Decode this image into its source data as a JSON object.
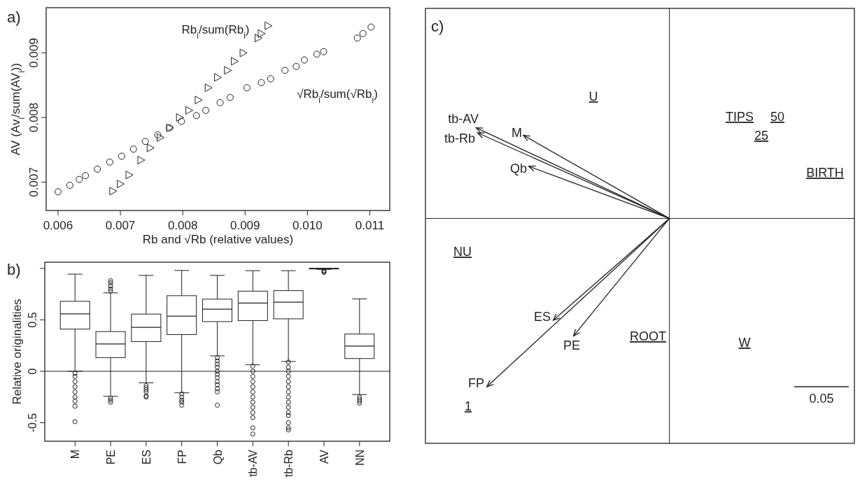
{
  "chart_data": [
    {
      "type": "scatter",
      "title": "a)",
      "xlabel": "Rb and √Rb (relative values)",
      "ylabel": "AV (Av$_{i}$/sum(AV$_{i}$))",
      "xlim": [
        0.00581,
        0.01132
      ],
      "ylim": [
        0.00656,
        0.0097
      ],
      "xticks": [
        0.006,
        0.007,
        0.008,
        0.009,
        {
          "value": 0.01,
          "label": "0.010"
        },
        0.011
      ],
      "yticks": [
        0.007,
        0.008,
        0.009
      ],
      "series": [
        {
          "name": "Rb$_{i}$/sum(Rb$_{i}$)",
          "color": "#231f20",
          "marker": "triangle",
          "x": [
            0.00688,
            0.007,
            0.00714,
            0.00733,
            0.00748,
            0.00764,
            0.00779,
            0.00795,
            0.0081,
            0.00825,
            0.00841,
            0.00856,
            0.00872,
            0.00883,
            0.00897,
            0.00921,
            0.00926,
            0.00937
          ],
          "values": [
            0.00686,
            0.00697,
            0.00711,
            0.00734,
            0.00753,
            0.00769,
            0.00784,
            0.008,
            0.00811,
            0.00827,
            0.00846,
            0.00862,
            0.00873,
            0.00887,
            0.009,
            0.00923,
            0.0093,
            0.00942
          ]
        },
        {
          "name": "√Rb$_{i}$/sum(√Rb$_{i}$)",
          "color": "#231f20",
          "marker": "circle",
          "x": [
            0.006,
            0.00619,
            0.00634,
            0.00644,
            0.00663,
            0.00683,
            0.00702,
            0.00721,
            0.0074,
            0.0076,
            0.00779,
            0.00798,
            0.00822,
            0.00837,
            0.0086,
            0.00876,
            0.00903,
            0.00926,
            0.00941,
            0.00964,
            0.00982,
            0.00995,
            0.01015,
            0.01026,
            0.0108,
            0.01089,
            0.01102
          ],
          "values": [
            0.00685,
            0.00695,
            0.00704,
            0.0071,
            0.0072,
            0.00731,
            0.0074,
            0.00751,
            0.00763,
            0.00773,
            0.00784,
            0.00794,
            0.00803,
            0.00811,
            0.00823,
            0.00831,
            0.00846,
            0.00854,
            0.0086,
            0.00873,
            0.00879,
            0.00889,
            0.00898,
            0.00902,
            0.00923,
            0.0093,
            0.0094
          ]
        }
      ]
    },
    {
      "type": "box",
      "title": "b)",
      "ylabel": "Relative originalities",
      "categories": [
        "M",
        "PE",
        "ES",
        "FP",
        "Qb",
        "tb-AV",
        "tb-Rb",
        "AV",
        "NN"
      ],
      "ylim": [
        -0.68,
        1.06
      ],
      "yticks": [
        -0.5,
        0,
        0.5,
        {
          "value": 1,
          "label": null
        }
      ],
      "ref_lines": [
        {
          "axis": "y",
          "value": 0,
          "label": null
        }
      ],
      "boxes": [
        {
          "low": 0.0,
          "q1": 0.41,
          "median": 0.558,
          "q3": 0.68,
          "high": 0.944,
          "outliers": [
            -0.02,
            -0.05,
            -0.1,
            -0.15,
            -0.2,
            -0.25,
            -0.29,
            -0.34,
            -0.49
          ]
        },
        {
          "low": -0.243,
          "q1": 0.133,
          "median": 0.265,
          "q3": 0.386,
          "high": 0.762,
          "outliers": [
            0.78,
            0.8,
            0.83,
            0.86,
            0.88,
            -0.26,
            -0.28,
            -0.3
          ]
        },
        {
          "low": -0.112,
          "q1": 0.289,
          "median": 0.427,
          "q3": 0.556,
          "high": 0.932,
          "outliers": [
            -0.14,
            -0.16,
            -0.18,
            -0.2,
            -0.24,
            -0.25
          ]
        },
        {
          "low": -0.209,
          "q1": 0.357,
          "median": 0.536,
          "q3": 0.735,
          "high": 0.98,
          "outliers": [
            -0.22,
            -0.25,
            -0.28,
            -0.3,
            -0.33
          ]
        },
        {
          "low": 0.15,
          "q1": 0.483,
          "median": 0.604,
          "q3": 0.701,
          "high": 0.932,
          "outliers": [
            0.13,
            0.1,
            0.07,
            0.04,
            0.0,
            -0.03,
            -0.06,
            -0.1,
            -0.13,
            -0.17,
            -0.2,
            -0.33
          ]
        },
        {
          "low": 0.063,
          "q1": 0.493,
          "median": 0.663,
          "q3": 0.779,
          "high": 0.978,
          "outliers": [
            0.05,
            0.0,
            -0.05,
            -0.1,
            -0.15,
            -0.2,
            -0.25,
            -0.3,
            -0.35,
            -0.4,
            -0.45,
            -0.55,
            -0.61
          ]
        },
        {
          "low": 0.095,
          "q1": 0.51,
          "median": 0.672,
          "q3": 0.784,
          "high": 0.978,
          "outliers": [
            0.09,
            0.04,
            0.0,
            -0.05,
            -0.1,
            -0.15,
            -0.2,
            -0.25,
            -0.3,
            -0.35,
            -0.4,
            -0.43,
            -0.5,
            -0.55,
            -0.57
          ]
        },
        {
          "low": 0.99,
          "q1": 0.995,
          "median": 1.0,
          "q3": 1.0,
          "high": 1.0,
          "outliers": [
            0.98,
            0.97,
            0.96
          ]
        },
        {
          "low": -0.226,
          "q1": 0.124,
          "median": 0.245,
          "q3": 0.362,
          "high": 0.704,
          "outliers": [
            -0.25,
            -0.27,
            -0.29,
            -0.31
          ]
        }
      ]
    },
    {
      "type": "other",
      "title": "c)",
      "annotations": [
        "U",
        "TIPS",
        "50",
        "25",
        "BIRTH",
        "NU",
        "ROOT",
        "W",
        "1",
        "0.05",
        "tb-AV",
        "tb-Rb",
        "M",
        "Qb",
        "ES",
        "PE",
        "FP"
      ]
    }
  ]
}
